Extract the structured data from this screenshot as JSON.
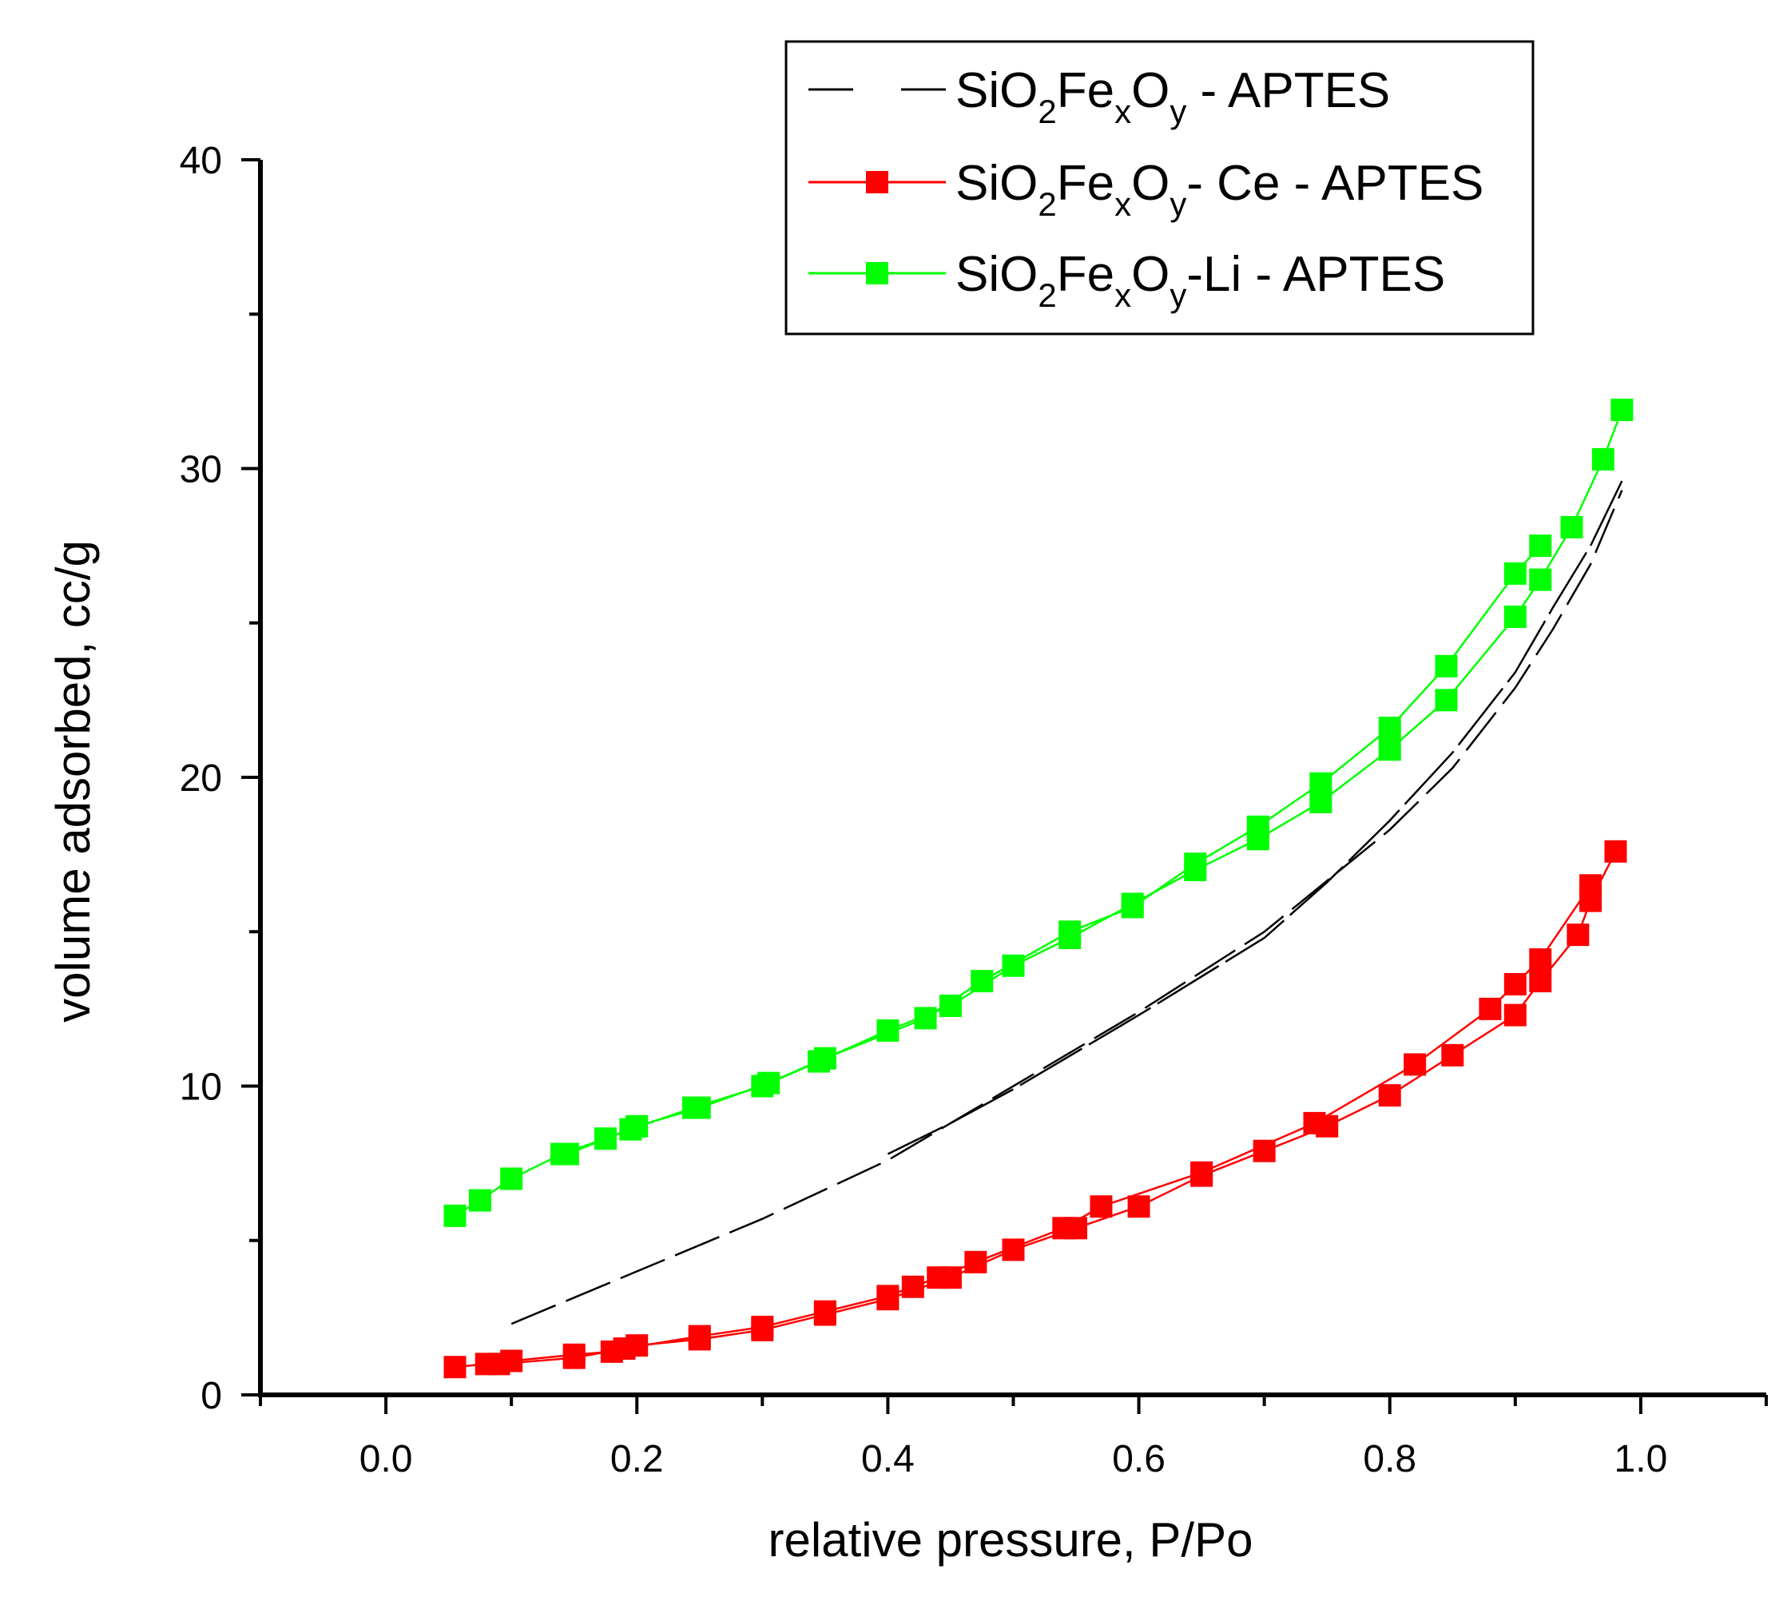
{
  "chart_data": {
    "type": "line",
    "title": "",
    "xlabel": "relative pressure, P/Po",
    "ylabel": "volume adsorbed, cc/g",
    "xlim": [
      -0.1,
      1.1
    ],
    "ylim": [
      0,
      40
    ],
    "xticks": [
      0.0,
      0.2,
      0.4,
      0.6,
      0.8,
      1.0
    ],
    "xtick_labels": [
      "0.0",
      "0.2",
      "0.4",
      "0.6",
      "0.8",
      "1.0"
    ],
    "yticks": [
      0,
      10,
      20,
      30,
      40
    ],
    "ytick_labels": [
      "0",
      "10",
      "20",
      "30",
      "40"
    ],
    "grid": false,
    "legend_position": "top-right",
    "series": [
      {
        "name": "SiO2FexOy - APTES",
        "legend": {
          "base": "SiO",
          "sub1": "2",
          "mid1": "Fe",
          "sub2": "x",
          "mid2": "O",
          "sub3": "y",
          "tail": " - APTES"
        },
        "color": "#000000",
        "marker": "none",
        "dash": true,
        "adsorption": {
          "x": [
            0.1,
            0.2,
            0.3,
            0.4,
            0.5,
            0.6,
            0.7,
            0.8,
            0.85,
            0.9,
            0.93,
            0.96,
            0.985
          ],
          "y": [
            2.3,
            4.0,
            5.7,
            7.6,
            10.0,
            12.4,
            15.0,
            18.3,
            20.3,
            22.9,
            24.8,
            26.9,
            29.3
          ]
        },
        "desorption": {
          "x": [
            0.985,
            0.96,
            0.93,
            0.9,
            0.85,
            0.8,
            0.75,
            0.7,
            0.6,
            0.5,
            0.45,
            0.4
          ],
          "y": [
            29.6,
            27.5,
            25.5,
            23.4,
            20.8,
            18.6,
            16.6,
            14.8,
            12.3,
            9.9,
            8.8,
            7.8
          ]
        }
      },
      {
        "name": "SiO2FexOy - Ce - APTES",
        "legend": {
          "base": "SiO",
          "sub1": "2",
          "mid1": "Fe",
          "sub2": "x",
          "mid2": "O",
          "sub3": "y",
          "tail": "- Ce - APTES"
        },
        "color": "#ff0000",
        "marker": "square",
        "adsorption": {
          "x": [
            0.055,
            0.08,
            0.1,
            0.15,
            0.18,
            0.2,
            0.25,
            0.3,
            0.35,
            0.4,
            0.45,
            0.5,
            0.55,
            0.6,
            0.65,
            0.7,
            0.75,
            0.8,
            0.85,
            0.9,
            0.92,
            0.95,
            0.96,
            0.98
          ],
          "y": [
            0.9,
            1.0,
            1.1,
            1.3,
            1.4,
            1.6,
            1.8,
            2.1,
            2.6,
            3.1,
            3.8,
            4.7,
            5.4,
            6.1,
            7.1,
            7.9,
            8.7,
            9.7,
            11.0,
            12.3,
            13.4,
            14.9,
            16.0,
            17.6
          ]
        },
        "desorption": {
          "x": [
            0.96,
            0.92,
            0.9,
            0.88,
            0.82,
            0.74,
            0.65,
            0.57,
            0.54,
            0.47,
            0.44,
            0.42,
            0.4,
            0.35,
            0.3,
            0.25,
            0.19,
            0.15,
            0.09
          ],
          "y": [
            16.5,
            14.1,
            13.3,
            12.5,
            10.7,
            8.8,
            7.2,
            6.1,
            5.4,
            4.3,
            3.8,
            3.5,
            3.2,
            2.7,
            2.2,
            1.9,
            1.5,
            1.2,
            1.0
          ]
        }
      },
      {
        "name": "SiO2FexOy-Li - APTES",
        "legend": {
          "base": "SiO",
          "sub1": "2",
          "mid1": "Fe",
          "sub2": "x",
          "mid2": "O",
          "sub3": "y",
          "tail": "-Li - APTES"
        },
        "color": "#00ff00",
        "marker": "square",
        "adsorption": {
          "x": [
            0.055,
            0.075,
            0.1,
            0.14,
            0.175,
            0.195,
            0.245,
            0.3,
            0.345,
            0.4,
            0.45,
            0.5,
            0.545,
            0.595,
            0.645,
            0.695,
            0.745,
            0.8,
            0.845,
            0.9,
            0.92,
            0.945,
            0.97,
            0.985
          ],
          "y": [
            5.8,
            6.3,
            7.0,
            7.8,
            8.3,
            8.6,
            9.3,
            10.0,
            10.8,
            11.8,
            12.6,
            13.9,
            14.8,
            15.9,
            17.0,
            18.0,
            19.2,
            20.9,
            22.5,
            25.2,
            26.4,
            28.1,
            30.3,
            31.9
          ]
        },
        "desorption": {
          "x": [
            0.92,
            0.9,
            0.845,
            0.8,
            0.745,
            0.695,
            0.645,
            0.595,
            0.545,
            0.475,
            0.43,
            0.35,
            0.305,
            0.25,
            0.2,
            0.145
          ],
          "y": [
            27.5,
            26.6,
            23.6,
            21.6,
            19.8,
            18.4,
            17.2,
            15.8,
            15.0,
            13.4,
            12.2,
            10.9,
            10.1,
            9.3,
            8.7,
            7.8
          ]
        }
      }
    ]
  }
}
